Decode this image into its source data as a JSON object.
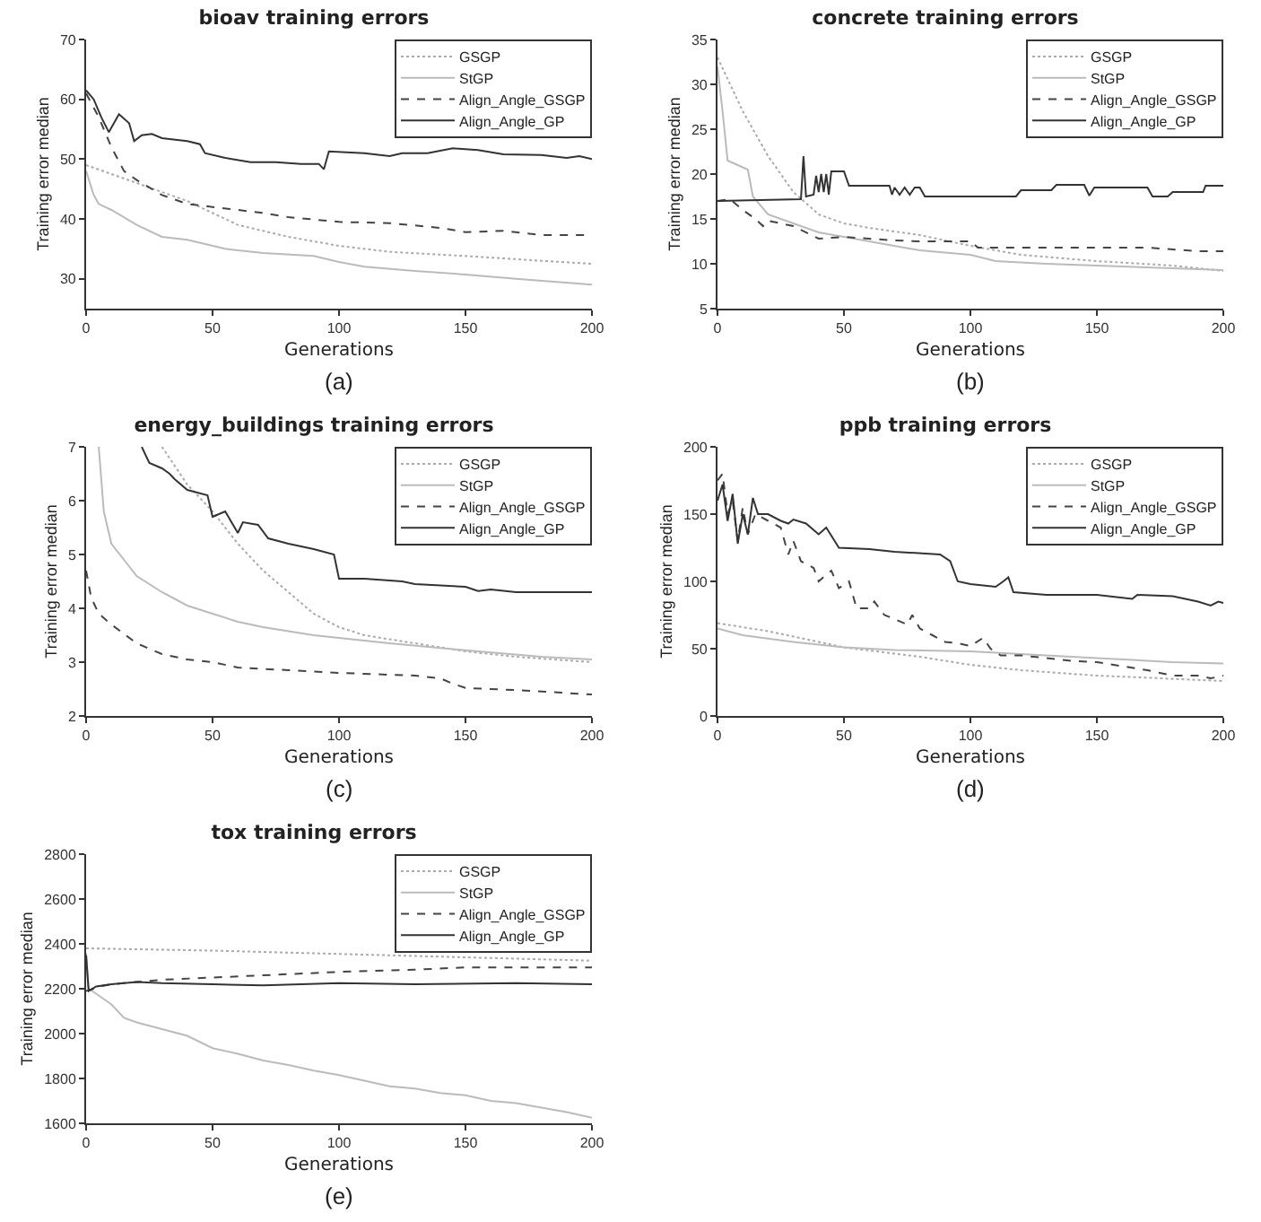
{
  "chart_data": [
    {
      "type": "line",
      "title": "bioav training errors",
      "xlabel": "Generations",
      "ylabel": "Training error median",
      "xlim": [
        0,
        200
      ],
      "xticks": [
        0,
        50,
        100,
        150,
        200
      ],
      "ylim": [
        25,
        70
      ],
      "yticks": [
        30,
        40,
        50,
        60,
        70
      ],
      "legend": "top right",
      "annotations": [
        "(a)"
      ],
      "series": [
        {
          "name": "GSGP",
          "color": "#aaaaaa",
          "line_style": "dotted",
          "x": [
            0,
            20,
            40,
            60,
            80,
            100,
            120,
            150,
            180,
            200
          ],
          "values": [
            49,
            46,
            43,
            39,
            37,
            35.5,
            34.5,
            33.8,
            33,
            32.5
          ]
        },
        {
          "name": "StGP",
          "color": "#bbbbbb",
          "line_style": "solid",
          "x": [
            0,
            3,
            5,
            10,
            20,
            30,
            40,
            55,
            70,
            90,
            100,
            110,
            130,
            150,
            170,
            200
          ],
          "values": [
            48,
            44,
            42.5,
            41.5,
            39,
            37,
            36.5,
            35,
            34.3,
            33.8,
            32.8,
            32,
            31.3,
            30.7,
            30,
            29
          ]
        },
        {
          "name": "Align_Angle_GSGP",
          "color": "#444444",
          "line_style": "dashed",
          "x": [
            0,
            5,
            10,
            15,
            20,
            30,
            40,
            50,
            60,
            70,
            80,
            100,
            120,
            140,
            150,
            165,
            180,
            200
          ],
          "values": [
            61,
            57,
            52,
            48,
            46.5,
            44,
            42.5,
            42,
            41.5,
            41,
            40.3,
            39.5,
            39.3,
            38.5,
            37.8,
            38,
            37.3,
            37.3
          ]
        },
        {
          "name": "Align_Angle_GP",
          "color": "#333333",
          "line_style": "solid",
          "x": [
            0,
            3,
            6,
            9,
            13,
            17,
            19,
            22,
            26,
            30,
            40,
            45,
            47,
            55,
            65,
            75,
            85,
            92,
            94,
            96,
            110,
            120,
            125,
            135,
            145,
            155,
            165,
            180,
            190,
            195,
            200
          ],
          "values": [
            61.5,
            60,
            57,
            54.5,
            57.5,
            56,
            53,
            54,
            54.2,
            53.5,
            53,
            52.5,
            51,
            50.2,
            49.5,
            49.5,
            49.2,
            49.2,
            48.3,
            51.3,
            51,
            50.5,
            51,
            51,
            51.8,
            51.5,
            50.8,
            50.7,
            50.2,
            50.5,
            50
          ]
        }
      ]
    },
    {
      "type": "line",
      "title": "concrete training errors",
      "xlabel": "Generations",
      "ylabel": "Training error median",
      "xlim": [
        0,
        200
      ],
      "xticks": [
        0,
        50,
        100,
        150,
        200
      ],
      "ylim": [
        5,
        35
      ],
      "yticks": [
        5,
        10,
        15,
        20,
        25,
        30,
        35
      ],
      "legend": "top right",
      "annotations": [
        "(b)"
      ],
      "series": [
        {
          "name": "GSGP",
          "color": "#aaaaaa",
          "line_style": "dotted",
          "x": [
            0,
            10,
            20,
            30,
            40,
            50,
            60,
            80,
            100,
            120,
            150,
            180,
            200
          ],
          "values": [
            33,
            27,
            22,
            18,
            15.5,
            14.5,
            14,
            13.2,
            12,
            11,
            10.3,
            9.8,
            9.2
          ]
        },
        {
          "name": "StGP",
          "color": "#bbbbbb",
          "line_style": "solid",
          "x": [
            0,
            2,
            4,
            8,
            12,
            14,
            20,
            30,
            40,
            60,
            80,
            100,
            110,
            130,
            150,
            180,
            200
          ],
          "values": [
            32,
            27,
            21.5,
            21,
            20.5,
            17.5,
            15.5,
            14.5,
            13.5,
            12.5,
            11.5,
            11,
            10.3,
            10,
            9.8,
            9.5,
            9.3
          ]
        },
        {
          "name": "Align_Angle_GSGP",
          "color": "#444444",
          "line_style": "dashed",
          "x": [
            0,
            5,
            10,
            15,
            18,
            20,
            30,
            40,
            50,
            70,
            80,
            100,
            103,
            130,
            150,
            170,
            190,
            200
          ],
          "values": [
            17,
            17.2,
            16,
            15,
            14.2,
            14.8,
            14.2,
            12.8,
            13,
            12.6,
            12.5,
            12.5,
            11.8,
            11.8,
            11.8,
            11.8,
            11.4,
            11.4
          ]
        },
        {
          "name": "Align_Angle_GP",
          "color": "#333333",
          "line_style": "solid",
          "x": [
            0,
            33,
            34,
            35,
            38,
            39,
            40,
            41,
            42,
            43,
            44,
            45,
            50,
            52,
            68,
            69,
            70,
            72,
            74,
            76,
            78,
            80,
            82,
            100,
            118,
            120,
            132,
            134,
            145,
            147,
            149,
            170,
            172,
            178,
            180,
            192,
            193,
            200
          ],
          "values": [
            17,
            17.2,
            22,
            17.5,
            17.7,
            19.8,
            18,
            20,
            18,
            20,
            17.7,
            20.3,
            20.3,
            18.7,
            18.7,
            17.7,
            18.5,
            17.7,
            18.5,
            17.7,
            18.5,
            18.5,
            17.5,
            17.5,
            17.5,
            18.2,
            18.2,
            18.8,
            18.8,
            17.6,
            18.5,
            18.5,
            17.5,
            17.5,
            18,
            18,
            18.7,
            18.7
          ]
        }
      ]
    },
    {
      "type": "line",
      "title": "energy_buildings training errors",
      "xlabel": "Generations",
      "ylabel": "Training error median",
      "xlim": [
        0,
        200
      ],
      "xticks": [
        0,
        50,
        100,
        150,
        200
      ],
      "ylim": [
        2,
        7
      ],
      "yticks": [
        2,
        3,
        4,
        5,
        6,
        7
      ],
      "legend": "top right",
      "annotations": [
        "(c)"
      ],
      "series": [
        {
          "name": "GSGP",
          "color": "#aaaaaa",
          "line_style": "dotted",
          "x": [
            30,
            40,
            50,
            60,
            70,
            80,
            90,
            100,
            110,
            130,
            150,
            170,
            200
          ],
          "values": [
            7,
            6.3,
            5.8,
            5.2,
            4.7,
            4.3,
            3.9,
            3.65,
            3.5,
            3.35,
            3.2,
            3.1,
            3.0
          ]
        },
        {
          "name": "StGP",
          "color": "#bbbbbb",
          "line_style": "solid",
          "x": [
            5,
            7,
            10,
            15,
            20,
            30,
            40,
            50,
            60,
            70,
            90,
            100,
            120,
            150,
            180,
            200
          ],
          "values": [
            7,
            5.8,
            5.2,
            4.9,
            4.6,
            4.3,
            4.05,
            3.9,
            3.75,
            3.65,
            3.5,
            3.45,
            3.35,
            3.22,
            3.1,
            3.05
          ]
        },
        {
          "name": "Align_Angle_GSGP",
          "color": "#444444",
          "line_style": "dashed",
          "x": [
            0,
            2,
            5,
            10,
            20,
            30,
            40,
            50,
            60,
            80,
            100,
            130,
            140,
            145,
            150,
            170,
            200
          ],
          "values": [
            4.7,
            4.2,
            3.9,
            3.7,
            3.35,
            3.15,
            3.05,
            3.0,
            2.9,
            2.85,
            2.8,
            2.75,
            2.7,
            2.6,
            2.52,
            2.48,
            2.4
          ]
        },
        {
          "name": "Align_Angle_GP",
          "color": "#333333",
          "line_style": "solid",
          "x": [
            22,
            25,
            30,
            33,
            35,
            40,
            48,
            50,
            55,
            60,
            62,
            68,
            72,
            80,
            90,
            98,
            100,
            110,
            125,
            130,
            150,
            155,
            160,
            170,
            200
          ],
          "values": [
            7,
            6.7,
            6.6,
            6.5,
            6.4,
            6.2,
            6.1,
            5.7,
            5.8,
            5.4,
            5.6,
            5.55,
            5.3,
            5.2,
            5.1,
            5.0,
            4.55,
            4.55,
            4.5,
            4.45,
            4.4,
            4.32,
            4.35,
            4.3,
            4.3
          ]
        }
      ]
    },
    {
      "type": "line",
      "title": "ppb training errors",
      "xlabel": "Generations",
      "ylabel": "Training error median",
      "xlim": [
        0,
        200
      ],
      "xticks": [
        0,
        50,
        100,
        150,
        200
      ],
      "ylim": [
        0,
        200
      ],
      "yticks": [
        0,
        50,
        100,
        150,
        200
      ],
      "legend": "top right",
      "annotations": [
        "(d)"
      ],
      "series": [
        {
          "name": "GSGP",
          "color": "#aaaaaa",
          "line_style": "dotted",
          "x": [
            0,
            20,
            50,
            80,
            100,
            120,
            150,
            175,
            200
          ],
          "values": [
            69,
            63,
            51,
            44,
            38,
            34,
            30,
            28,
            26
          ]
        },
        {
          "name": "StGP",
          "color": "#bbbbbb",
          "line_style": "solid",
          "x": [
            0,
            10,
            30,
            50,
            70,
            100,
            120,
            150,
            180,
            200
          ],
          "values": [
            65,
            60,
            55,
            51,
            49,
            48,
            46,
            43,
            40,
            39
          ]
        },
        {
          "name": "Align_Angle_GSGP",
          "color": "#444444",
          "line_style": "dashed",
          "x": [
            0,
            2,
            4,
            6,
            8,
            10,
            12,
            15,
            20,
            25,
            28,
            30,
            33,
            38,
            40,
            43,
            45,
            48,
            52,
            55,
            60,
            62,
            66,
            70,
            75,
            77,
            80,
            85,
            90,
            95,
            100,
            105,
            108,
            112,
            120,
            130,
            140,
            150,
            160,
            170,
            180,
            190,
            195,
            200
          ],
          "values": [
            175,
            180,
            150,
            160,
            130,
            155,
            135,
            150,
            145,
            140,
            120,
            130,
            115,
            110,
            100,
            105,
            108,
            95,
            100,
            80,
            80,
            85,
            75,
            72,
            68,
            75,
            65,
            60,
            55,
            54,
            52,
            58,
            50,
            45,
            45,
            43,
            41,
            40,
            37,
            34,
            30,
            30,
            28,
            30
          ]
        },
        {
          "name": "Align_Angle_GP",
          "color": "#333333",
          "line_style": "solid",
          "x": [
            0,
            2,
            4,
            6,
            8,
            10,
            12,
            14,
            16,
            20,
            25,
            28,
            30,
            35,
            40,
            43,
            48,
            60,
            70,
            88,
            92,
            95,
            100,
            110,
            113,
            115,
            117,
            130,
            150,
            164,
            166,
            180,
            190,
            195,
            198,
            200
          ],
          "values": [
            160,
            172,
            145,
            165,
            128,
            150,
            135,
            162,
            150,
            150,
            145,
            143,
            146,
            143,
            135,
            140,
            125,
            124,
            122,
            120,
            115,
            100,
            98,
            96,
            100,
            103,
            92,
            90,
            90,
            87,
            90,
            89,
            85,
            82,
            85,
            84
          ]
        }
      ]
    },
    {
      "type": "line",
      "title": "tox training errors",
      "xlabel": "Generations",
      "ylabel": "Training error median",
      "xlim": [
        0,
        200
      ],
      "xticks": [
        0,
        50,
        100,
        150,
        200
      ],
      "ylim": [
        1600,
        2800
      ],
      "yticks": [
        1600,
        1800,
        2000,
        2200,
        2400,
        2600,
        2800
      ],
      "legend": "top right",
      "annotations": [
        "(e)"
      ],
      "series": [
        {
          "name": "GSGP",
          "color": "#aaaaaa",
          "line_style": "dotted",
          "x": [
            0,
            50,
            100,
            150,
            200
          ],
          "values": [
            2380,
            2370,
            2355,
            2340,
            2325
          ]
        },
        {
          "name": "StGP",
          "color": "#bbbbbb",
          "line_style": "solid",
          "x": [
            0,
            1,
            5,
            10,
            15,
            20,
            30,
            40,
            50,
            60,
            70,
            80,
            90,
            100,
            110,
            120,
            130,
            140,
            150,
            160,
            170,
            180,
            190,
            200
          ],
          "values": [
            2360,
            2200,
            2170,
            2130,
            2070,
            2050,
            2020,
            1990,
            1935,
            1910,
            1880,
            1860,
            1835,
            1815,
            1790,
            1765,
            1755,
            1735,
            1725,
            1700,
            1690,
            1670,
            1650,
            1625
          ]
        },
        {
          "name": "Align_Angle_GSGP",
          "color": "#444444",
          "line_style": "dashed",
          "x": [
            0,
            3,
            5,
            10,
            30,
            50,
            70,
            100,
            130,
            150,
            200
          ],
          "values": [
            2190,
            2200,
            2210,
            2220,
            2240,
            2250,
            2260,
            2275,
            2285,
            2295,
            2295
          ]
        },
        {
          "name": "Align_Angle_GP",
          "color": "#333333",
          "line_style": "solid",
          "x": [
            0,
            1,
            4,
            10,
            20,
            30,
            50,
            70,
            100,
            130,
            170,
            200
          ],
          "values": [
            2350,
            2190,
            2210,
            2220,
            2230,
            2225,
            2220,
            2215,
            2225,
            2220,
            2225,
            2220
          ]
        }
      ]
    }
  ]
}
